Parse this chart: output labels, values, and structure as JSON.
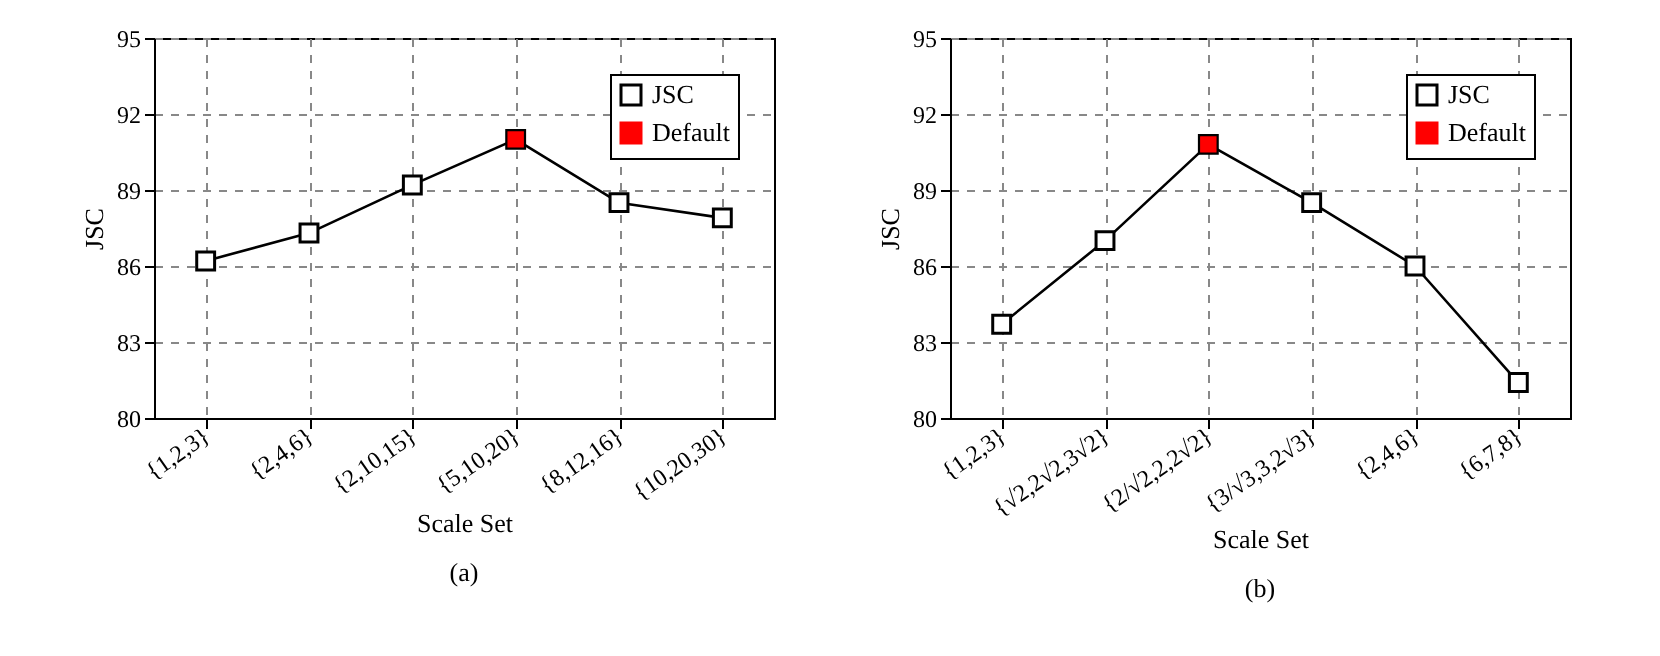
{
  "chart_data": [
    {
      "type": "line",
      "categories": [
        "{1,2,3}",
        "{2,4,6}",
        "{2,10,15}",
        "{5,10,20}",
        "{8,12,16}",
        "{10,20,30}"
      ],
      "xlabel": "Scale Set",
      "ylabel": "JSC",
      "ylim": [
        80,
        95
      ],
      "yticks": [
        80,
        83,
        86,
        89,
        92,
        95
      ],
      "grid": true,
      "legend": "top right",
      "marker": "square",
      "line_style": "solid",
      "annotations": [
        "(a)"
      ],
      "series": [
        {
          "name": "JSC",
          "color": "#000000",
          "values": [
            86.2,
            87.3,
            89.2,
            91.0,
            88.5,
            87.9
          ]
        },
        {
          "name": "Default",
          "type": "scatter",
          "color": "#ff0000",
          "x": [
            "{5,10,20}"
          ],
          "values": [
            91.0
          ]
        }
      ]
    },
    {
      "type": "line",
      "categories": [
        "{1,2,3}",
        "{√2,2√2,3√2}",
        "{2/√2,2,2√2}",
        "{3/√3,3,2√3}",
        "{2,4,6}",
        "{6,7,8}"
      ],
      "xlabel": "Scale Set",
      "ylabel": "JSC",
      "ylim": [
        80,
        95
      ],
      "yticks": [
        80,
        83,
        86,
        89,
        92,
        95
      ],
      "grid": true,
      "legend": "top right",
      "marker": "square",
      "line_style": "solid",
      "annotations": [
        "(b)"
      ],
      "series": [
        {
          "name": "JSC",
          "color": "#000000",
          "values": [
            83.7,
            87.0,
            90.8,
            88.5,
            86.0,
            81.4
          ]
        },
        {
          "name": "Default",
          "type": "scatter",
          "color": "#ff0000",
          "x": [
            "{2/√2,2,2√2}"
          ],
          "values": [
            90.8
          ]
        }
      ]
    }
  ]
}
